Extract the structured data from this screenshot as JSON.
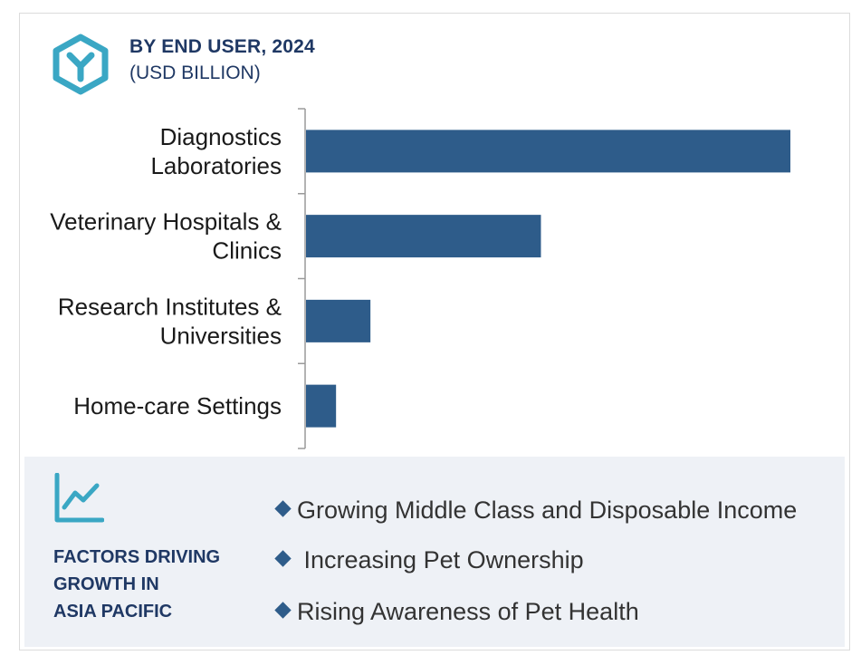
{
  "header": {
    "title": "BY END USER, 2024",
    "subtitle": "(USD BILLION)",
    "logo_icon": "hexagon-y-logo-icon",
    "accent_color": "#3aa7c4"
  },
  "chart_data": {
    "type": "bar",
    "orientation": "horizontal",
    "categories": [
      [
        "Diagnostics",
        "Laboratories"
      ],
      [
        "Veterinary Hospitals &",
        "Clinics"
      ],
      [
        "Research Institutes &",
        "Universities"
      ],
      [
        "Home-care Settings"
      ]
    ],
    "values": [
      100,
      48.5,
      13.3,
      6.2
    ],
    "xlim": [
      0,
      100
    ],
    "title": "BY END USER, 2024",
    "xlabel": "",
    "ylabel": "",
    "grid": false,
    "bar_color": "#2e5c8a"
  },
  "factors": {
    "icon": "trend-line-chart-icon",
    "title_lines": [
      "FACTORS DRIVING",
      "GROWTH IN",
      "ASIA PACIFIC"
    ],
    "items": [
      "Growing Middle Class and Disposable Income",
      " Increasing Pet Ownership",
      "Rising Awareness of Pet Health"
    ]
  }
}
